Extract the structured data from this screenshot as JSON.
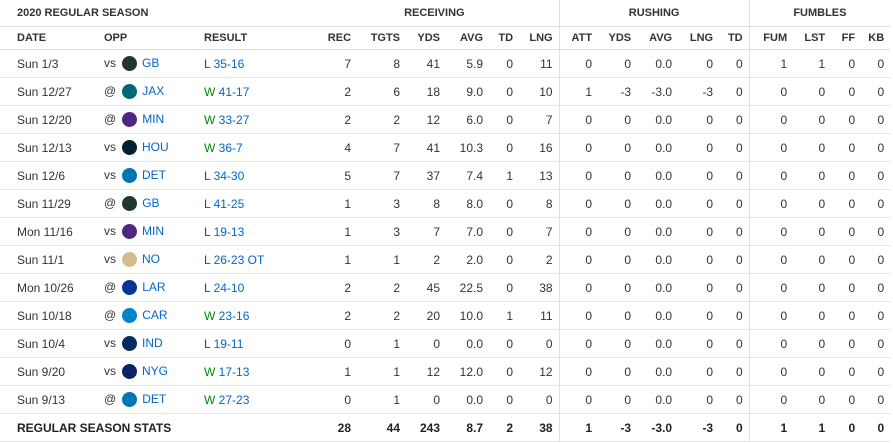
{
  "header": {
    "title": "2020 REGULAR SEASON",
    "groups": [
      "RECEIVING",
      "RUSHING",
      "FUMBLES"
    ],
    "columns": [
      "DATE",
      "OPP",
      "RESULT",
      "REC",
      "TGTS",
      "YDS",
      "AVG",
      "TD",
      "LNG",
      "ATT",
      "YDS",
      "AVG",
      "LNG",
      "TD",
      "FUM",
      "LST",
      "FF",
      "KB"
    ]
  },
  "rows": [
    {
      "date": "Sun 1/3",
      "loc": "vs",
      "opp": "GB",
      "wl": "L",
      "score": "35-16",
      "stats": [
        "7",
        "8",
        "41",
        "5.9",
        "0",
        "11",
        "0",
        "0",
        "0.0",
        "0",
        "0",
        "1",
        "1",
        "0",
        "0"
      ]
    },
    {
      "date": "Sun 12/27",
      "loc": "@",
      "opp": "JAX",
      "wl": "W",
      "score": "41-17",
      "stats": [
        "2",
        "6",
        "18",
        "9.0",
        "0",
        "10",
        "1",
        "-3",
        "-3.0",
        "-3",
        "0",
        "0",
        "0",
        "0",
        "0"
      ]
    },
    {
      "date": "Sun 12/20",
      "loc": "@",
      "opp": "MIN",
      "wl": "W",
      "score": "33-27",
      "stats": [
        "2",
        "2",
        "12",
        "6.0",
        "0",
        "7",
        "0",
        "0",
        "0.0",
        "0",
        "0",
        "0",
        "0",
        "0",
        "0"
      ]
    },
    {
      "date": "Sun 12/13",
      "loc": "vs",
      "opp": "HOU",
      "wl": "W",
      "score": "36-7",
      "stats": [
        "4",
        "7",
        "41",
        "10.3",
        "0",
        "16",
        "0",
        "0",
        "0.0",
        "0",
        "0",
        "0",
        "0",
        "0",
        "0"
      ]
    },
    {
      "date": "Sun 12/6",
      "loc": "vs",
      "opp": "DET",
      "wl": "L",
      "score": "34-30",
      "stats": [
        "5",
        "7",
        "37",
        "7.4",
        "1",
        "13",
        "0",
        "0",
        "0.0",
        "0",
        "0",
        "0",
        "0",
        "0",
        "0"
      ]
    },
    {
      "date": "Sun 11/29",
      "loc": "@",
      "opp": "GB",
      "wl": "L",
      "score": "41-25",
      "stats": [
        "1",
        "3",
        "8",
        "8.0",
        "0",
        "8",
        "0",
        "0",
        "0.0",
        "0",
        "0",
        "0",
        "0",
        "0",
        "0"
      ]
    },
    {
      "date": "Mon 11/16",
      "loc": "vs",
      "opp": "MIN",
      "wl": "L",
      "score": "19-13",
      "stats": [
        "1",
        "3",
        "7",
        "7.0",
        "0",
        "7",
        "0",
        "0",
        "0.0",
        "0",
        "0",
        "0",
        "0",
        "0",
        "0"
      ]
    },
    {
      "date": "Sun 11/1",
      "loc": "vs",
      "opp": "NO",
      "wl": "L",
      "score": "26-23 OT",
      "stats": [
        "1",
        "1",
        "2",
        "2.0",
        "0",
        "2",
        "0",
        "0",
        "0.0",
        "0",
        "0",
        "0",
        "0",
        "0",
        "0"
      ]
    },
    {
      "date": "Mon 10/26",
      "loc": "@",
      "opp": "LAR",
      "wl": "L",
      "score": "24-10",
      "stats": [
        "2",
        "2",
        "45",
        "22.5",
        "0",
        "38",
        "0",
        "0",
        "0.0",
        "0",
        "0",
        "0",
        "0",
        "0",
        "0"
      ]
    },
    {
      "date": "Sun 10/18",
      "loc": "@",
      "opp": "CAR",
      "wl": "W",
      "score": "23-16",
      "stats": [
        "2",
        "2",
        "20",
        "10.0",
        "1",
        "11",
        "0",
        "0",
        "0.0",
        "0",
        "0",
        "0",
        "0",
        "0",
        "0"
      ]
    },
    {
      "date": "Sun 10/4",
      "loc": "vs",
      "opp": "IND",
      "wl": "L",
      "score": "19-11",
      "stats": [
        "0",
        "1",
        "0",
        "0.0",
        "0",
        "0",
        "0",
        "0",
        "0.0",
        "0",
        "0",
        "0",
        "0",
        "0",
        "0"
      ]
    },
    {
      "date": "Sun 9/20",
      "loc": "vs",
      "opp": "NYG",
      "wl": "W",
      "score": "17-13",
      "stats": [
        "1",
        "1",
        "12",
        "12.0",
        "0",
        "12",
        "0",
        "0",
        "0.0",
        "0",
        "0",
        "0",
        "0",
        "0",
        "0"
      ]
    },
    {
      "date": "Sun 9/13",
      "loc": "@",
      "opp": "DET",
      "wl": "W",
      "score": "27-23",
      "stats": [
        "0",
        "1",
        "0",
        "0.0",
        "0",
        "0",
        "0",
        "0",
        "0.0",
        "0",
        "0",
        "0",
        "0",
        "0",
        "0"
      ]
    }
  ],
  "totals": {
    "label": "REGULAR SEASON STATS",
    "stats": [
      "28",
      "44",
      "243",
      "8.7",
      "2",
      "38",
      "1",
      "-3",
      "-3.0",
      "-3",
      "0",
      "1",
      "1",
      "0",
      "0"
    ]
  }
}
